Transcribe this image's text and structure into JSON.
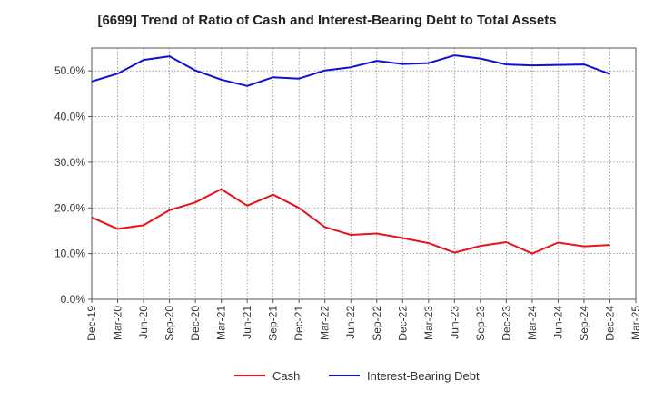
{
  "chart_data": {
    "type": "line",
    "title": "[6699]  Trend of Ratio of Cash and Interest-Bearing Debt to Total Assets",
    "xlabel": "",
    "ylabel": "",
    "ylim": [
      0,
      55
    ],
    "y_ticks": [
      0,
      10,
      20,
      30,
      40,
      50
    ],
    "y_tick_labels": [
      "0.0%",
      "10.0%",
      "20.0%",
      "30.0%",
      "40.0%",
      "50.0%"
    ],
    "categories": [
      "Dec-19",
      "Mar-20",
      "Jun-20",
      "Sep-20",
      "Dec-20",
      "Mar-21",
      "Jun-21",
      "Sep-21",
      "Dec-21",
      "Mar-22",
      "Jun-22",
      "Sep-22",
      "Dec-22",
      "Mar-23",
      "Jun-23",
      "Sep-23",
      "Dec-23",
      "Mar-24",
      "Jun-24",
      "Sep-24",
      "Dec-24",
      "Mar-25"
    ],
    "grid": true,
    "legend_position": "bottom",
    "series": [
      {
        "name": "Cash",
        "color": "#e8141a",
        "values": [
          17.9,
          15.4,
          16.2,
          19.5,
          21.2,
          24.1,
          20.5,
          22.9,
          20.0,
          15.8,
          14.1,
          14.4,
          13.4,
          12.3,
          10.2,
          11.7,
          12.5,
          10.0,
          12.4,
          11.6,
          11.9,
          null
        ]
      },
      {
        "name": "Interest-Bearing Debt",
        "color": "#1010d4",
        "values": [
          47.7,
          49.4,
          52.4,
          53.2,
          50.1,
          48.1,
          46.7,
          48.6,
          48.3,
          50.1,
          50.8,
          52.2,
          51.5,
          51.7,
          53.4,
          52.7,
          51.4,
          51.2,
          51.3,
          51.4,
          49.3,
          null
        ]
      }
    ]
  }
}
